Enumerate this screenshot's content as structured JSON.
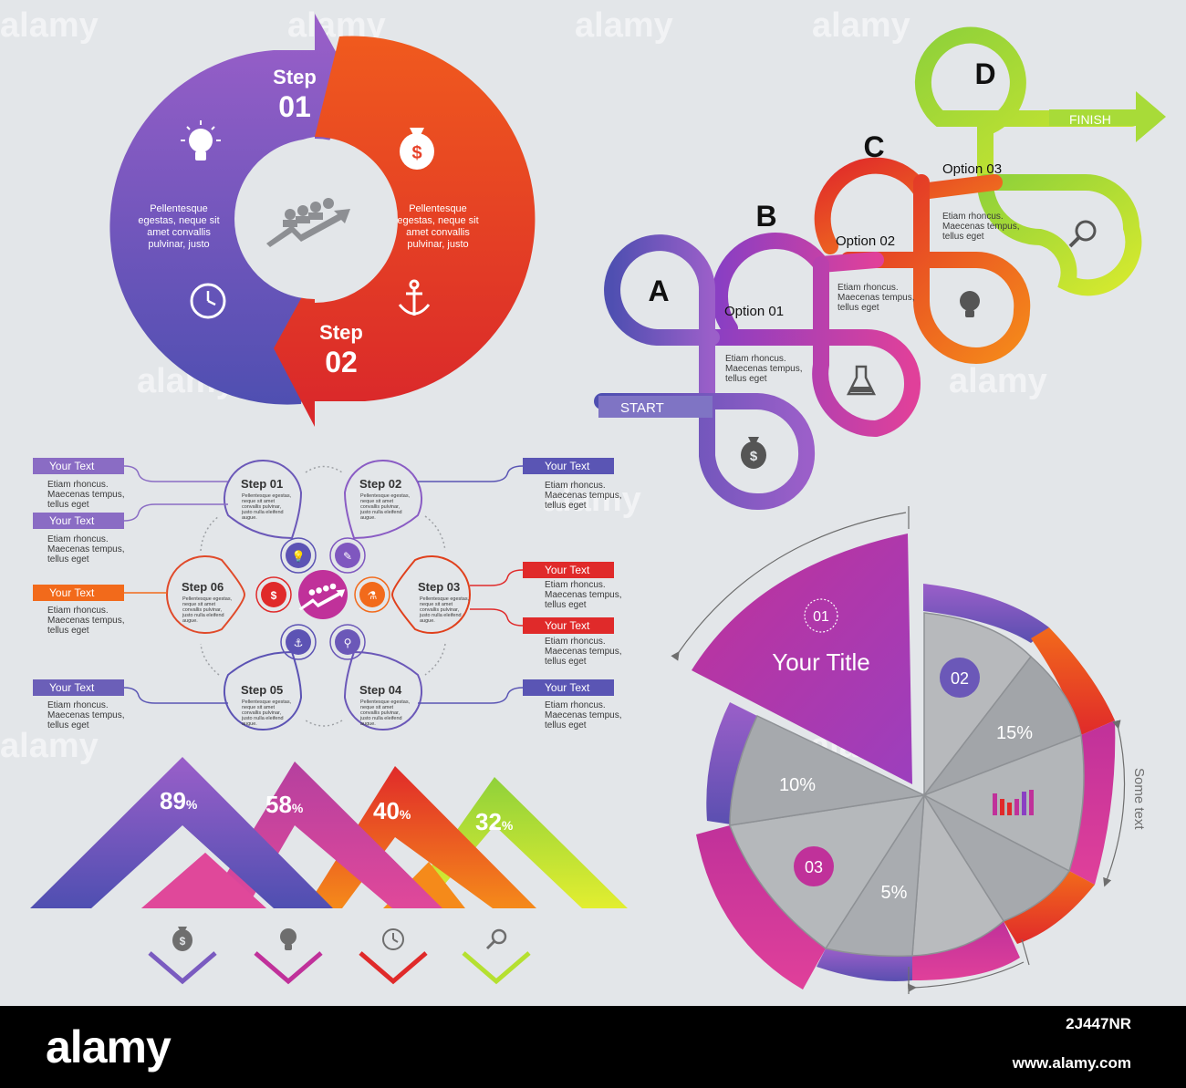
{
  "watermark": "alamy",
  "colors": {
    "purple": "#5b4fb0",
    "violet": "#9a58c8",
    "magenta": "#c0319a",
    "pink": "#e03e9a",
    "red": "#e02a2a",
    "orange": "#f26a1b",
    "yellow_green": "#c9e530",
    "green": "#8fd13a",
    "gray": "#a9acb0",
    "background": "#e3e6e9"
  },
  "cycle": {
    "step1": {
      "word": "Step",
      "num": "01"
    },
    "step2": {
      "word": "Step",
      "num": "02"
    },
    "left_text": [
      "Pellentesque",
      "egestas, neque sit",
      "amet convallis",
      "pulvinar, justo"
    ],
    "right_text": [
      "Pellentesque",
      "egestas, neque sit",
      "amet convallis",
      "pulvinar, justo"
    ],
    "icons": [
      "lightbulb-icon",
      "clock-icon",
      "money-bag-icon",
      "anchor-icon",
      "team-growth-icon"
    ]
  },
  "knots": {
    "letters": [
      "A",
      "B",
      "C",
      "D"
    ],
    "options": [
      "Option 01",
      "Option 02",
      "Option 03"
    ],
    "start": "START",
    "finish": "FINISH",
    "desc": [
      "Etiam rhoncus.",
      "Maecenas tempus,",
      "tellus eget"
    ]
  },
  "flower": {
    "steps": [
      "Step 01",
      "Step 02",
      "Step 03",
      "Step 04",
      "Step 05",
      "Step 06"
    ],
    "step_text": [
      "Pellentesque egestas,",
      "neque sit amet",
      "convallis pulvinar,",
      "justo nulla eleifend",
      "augue."
    ],
    "tab_label": "Your Text",
    "desc": [
      "Etiam rhoncus.",
      "Maecenas tempus,",
      "tellus eget"
    ]
  },
  "mountains": {
    "values": [
      "89",
      "58",
      "40",
      "32"
    ],
    "unit": "%",
    "icons": [
      "money-bag-icon",
      "lightbulb-icon",
      "clock-icon",
      "search-icon"
    ]
  },
  "pie": {
    "title_num": "01",
    "title": "Your Title",
    "badge2": "02",
    "badge3": "03",
    "pct_15": "15%",
    "pct_10": "10%",
    "pct_5": "5%",
    "side_text": "Some text"
  },
  "footer": {
    "logo": "alamy",
    "image_id": "2J447NR",
    "site": "www.alamy.com"
  }
}
